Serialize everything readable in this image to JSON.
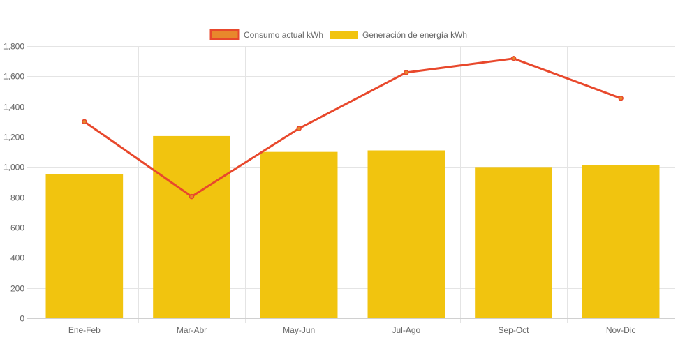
{
  "chart_data": {
    "type": "bar",
    "categories": [
      "Ene-Feb",
      "Mar-Abr",
      "May-Jun",
      "Jul-Ago",
      "Sep-Oct",
      "Nov-Dic"
    ],
    "series": [
      {
        "name": "Consumo actual kWh",
        "kind": "line",
        "color": "#E8482C",
        "fill": "#E8882C",
        "values": [
          1300,
          805,
          1255,
          1625,
          1718,
          1455
        ]
      },
      {
        "name": "Generación de energía kWh",
        "kind": "bar",
        "color": "#F1C40F",
        "values": [
          955,
          1205,
          1100,
          1110,
          1000,
          1015
        ]
      }
    ],
    "ylim": [
      0,
      1800
    ],
    "yticks": [
      0,
      200,
      400,
      600,
      800,
      1000,
      1200,
      1400,
      1600,
      1800
    ],
    "ytick_labels": [
      "0",
      "200",
      "400",
      "600",
      "800",
      "1,000",
      "1,200",
      "1,400",
      "1,600",
      "1,800"
    ],
    "legend_position": "top-center",
    "grid": true,
    "title": "",
    "xlabel": "",
    "ylabel": ""
  }
}
